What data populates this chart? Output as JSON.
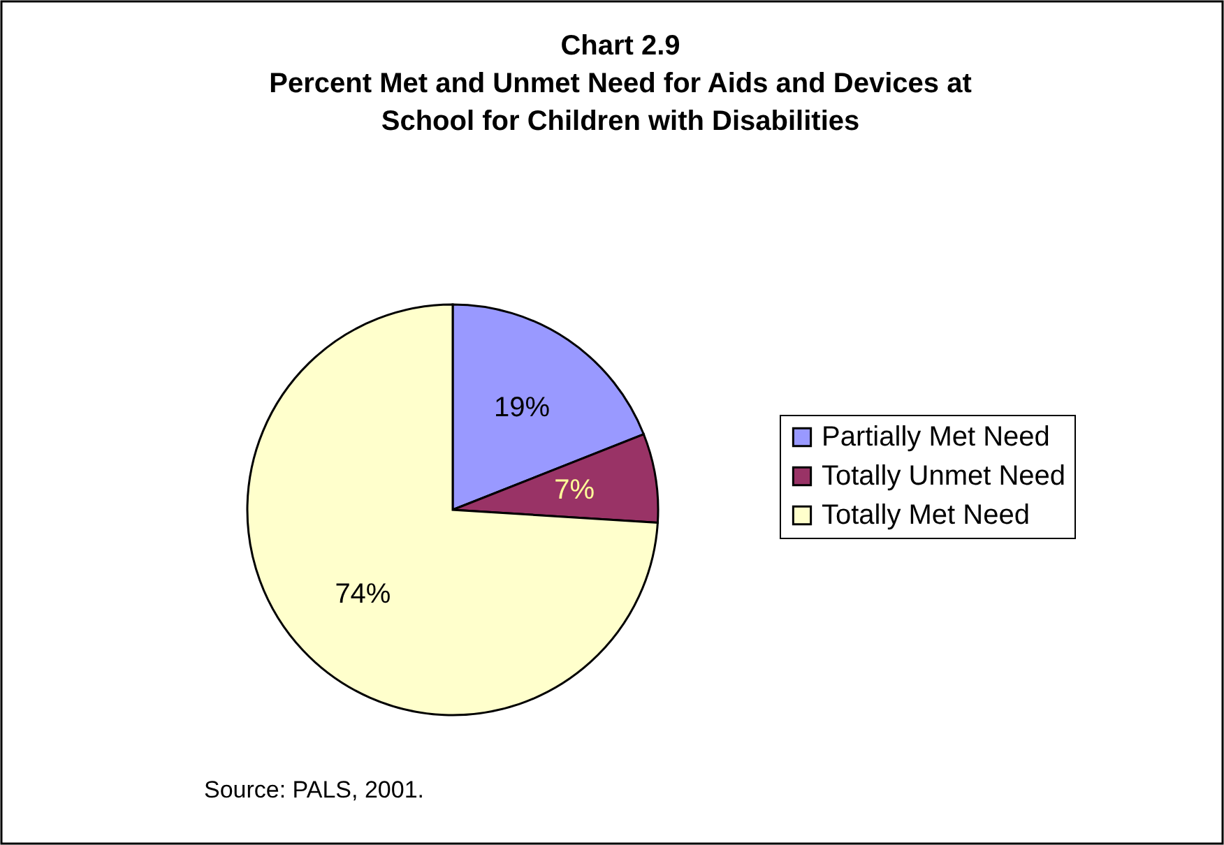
{
  "chart_data": {
    "type": "pie",
    "title": "Chart 2.9\nPercent Met and Unmet Need for Aids and Devices at\nSchool for Children with Disabilities",
    "categories": [
      "Partially Met Need",
      "Totally Unmet Need",
      "Totally Met Need"
    ],
    "values": [
      19,
      7,
      74
    ],
    "colors": [
      "#9999ff",
      "#993366",
      "#ffffcc"
    ],
    "value_labels": [
      "19%",
      "7%",
      "74%"
    ],
    "legend": "right",
    "annotations": [
      "Source: PALS, 2001."
    ]
  }
}
